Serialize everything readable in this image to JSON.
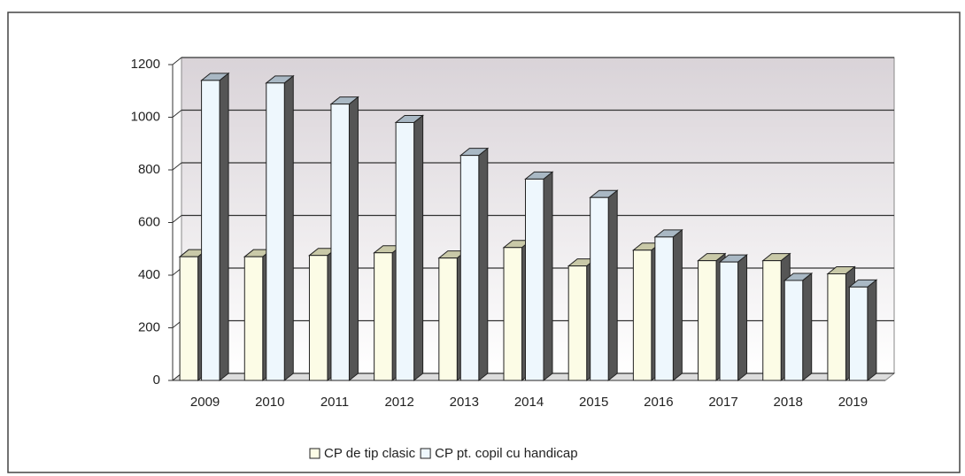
{
  "chart_data": {
    "type": "bar3d",
    "categories": [
      "2009",
      "2010",
      "2011",
      "2012",
      "2013",
      "2014",
      "2015",
      "2016",
      "2017",
      "2018",
      "2019"
    ],
    "series": [
      {
        "name": "CP de tip clasic",
        "color": "#fcfce6",
        "values": [
          470,
          470,
          475,
          485,
          465,
          505,
          435,
          495,
          455,
          455,
          405
        ]
      },
      {
        "name": "CP pt. copil cu handicap",
        "color": "#eef7fd",
        "values": [
          1140,
          1130,
          1050,
          980,
          855,
          765,
          695,
          545,
          450,
          380,
          355
        ]
      }
    ],
    "ylim": [
      0,
      1200
    ],
    "yticks": [
      0,
      200,
      400,
      600,
      800,
      1000,
      1200
    ],
    "grid": true
  }
}
